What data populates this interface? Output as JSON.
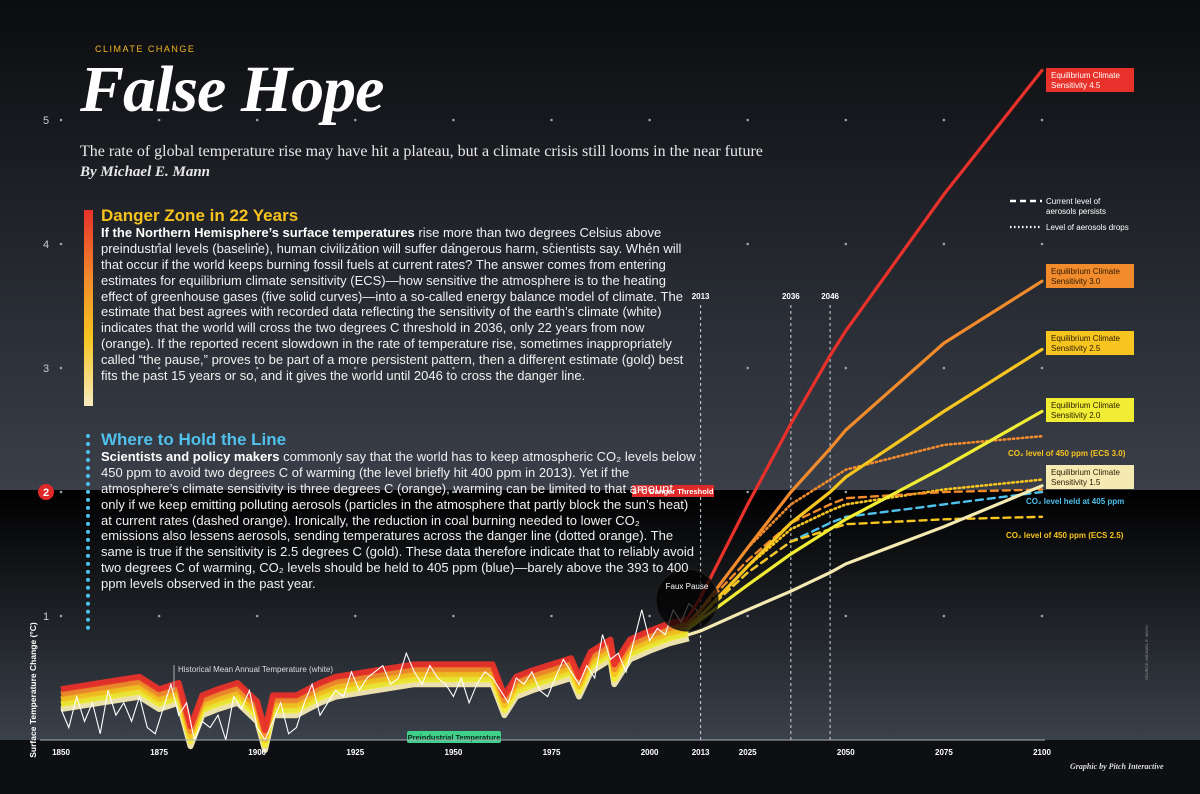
{
  "header": {
    "kicker": "CLIMATE CHANGE",
    "title": "False Hope",
    "subtitle": "The rate of global temperature rise may have hit a plateau, but a climate crisis still looms in the near future",
    "byline": "By Michael E. Mann"
  },
  "danger_panel": {
    "heading": "Danger Zone in 22 Years",
    "lead": "If the Northern Hemisphere’s surface temperatures",
    "body": " rise more than two degrees Celsius above preindustrial levels (baseline), human civilization will suffer dangerous harm, scientists say. When will that occur if the world keeps burning fossil fuels at current rates? The answer comes from entering estimates for equilibrium climate sensitivity (ECS)—how sensitive the atmosphere is to the heating effect of greenhouse gases (five solid curves)—into a so-called energy balance model of climate. The estimate that best agrees with recorded data reflecting the sensitivity of the earth’s climate (white) indicates that the world will cross the two degrees C threshold in 2036, only 22 years from now (orange). If the reported recent slowdown in the rate of temperature rise, sometimes inappropriately called “the pause,” proves to be part of a more persistent pattern, then a different estimate (gold) best fits the past 15 years or so, and it gives the world until 2046 to cross the danger line."
  },
  "hold_panel": {
    "heading": "Where to Hold the Line",
    "lead": "Scientists and policy makers",
    "body": " commonly say that the world has to keep atmospheric CO₂ levels below 450 ppm to avoid two degrees C of warming (the level briefly hit 400 ppm in 2013). Yet if the atmosphere’s climate sensitivity is three degrees C (orange), warming can be limited to that amount only if we keep emitting polluting aerosols (particles in the atmosphere that partly block the sun’s heat) at current rates (dashed orange). Ironically, the reduction in coal burning needed to lower CO₂ emissions also lessens aerosols, sending temperatures across the danger line (dotted orange). The same is true if the sensitivity is 2.5 degrees C (gold). These data therefore indicate that to reliably avoid two degrees C of warming, CO₂ levels should be held to 405 ppm (blue)—barely above the 393 to 400 ppm levels observed in the past year."
  },
  "credit": "Graphic by Pitch Interactive",
  "source": "SOURCE: MICHAEL E. MANN",
  "chart_data": {
    "type": "line",
    "ylabel": "Surface Temperature Change (°C)",
    "xlim": [
      1850,
      2100
    ],
    "ylim": [
      0,
      5
    ],
    "x_ticks": [
      1850,
      1875,
      1900,
      1925,
      1950,
      1975,
      2000,
      2013,
      2025,
      2050,
      2075,
      2100
    ],
    "y_ticks": [
      1,
      2,
      3,
      4,
      5
    ],
    "highlighted_y_tick": 2,
    "grid": "dots",
    "reference_years": [
      2013,
      2036,
      2046
    ],
    "threshold": {
      "value": 2,
      "label": "2 °C Danger Threshold"
    },
    "baseline_label": "Preindustrial Temperature",
    "historical_label": "Historical Mean Annual Temperature (white)",
    "faux_pause_label": "Faux Pause",
    "legend": {
      "dashed": "Current level of aerosols persists",
      "dotted": "Level of aerosols drops"
    },
    "colors": {
      "ecs45": "#e8312a",
      "ecs30": "#f28b2b",
      "ecs25": "#f7c51f",
      "ecs20": "#f1ec34",
      "ecs15": "#f6eab3",
      "blue": "#4fc1ec",
      "historical": "#ffffff",
      "threshold_label": "#e02a2a",
      "baseline_label": "#3fd08a"
    },
    "projection_x": [
      2010,
      2013,
      2025,
      2036,
      2046,
      2050,
      2075,
      2100
    ],
    "series": [
      {
        "name": "Equilibrium Climate Sensitivity 4.5",
        "key": "ecs45",
        "style": "solid",
        "values": [
          1.0,
          1.15,
          1.9,
          2.55,
          3.1,
          3.3,
          4.4,
          5.4
        ]
      },
      {
        "name": "Equilibrium Climate Sensitivity 3.0",
        "key": "ecs30",
        "style": "solid",
        "values": [
          0.95,
          1.05,
          1.55,
          2.0,
          2.35,
          2.5,
          3.2,
          3.7
        ]
      },
      {
        "name": "Equilibrium Climate Sensitivity 2.5",
        "key": "ecs25",
        "style": "solid",
        "values": [
          0.92,
          1.0,
          1.4,
          1.75,
          2.0,
          2.12,
          2.65,
          3.15
        ]
      },
      {
        "name": "Equilibrium Climate Sensitivity 2.0",
        "key": "ecs20",
        "style": "solid",
        "values": [
          0.9,
          0.97,
          1.25,
          1.5,
          1.7,
          1.78,
          2.2,
          2.65
        ]
      },
      {
        "name": "Equilibrium Climate Sensitivity 1.5",
        "key": "ecs15",
        "style": "solid",
        "values": [
          0.85,
          0.88,
          1.05,
          1.2,
          1.35,
          1.42,
          1.72,
          2.05
        ]
      },
      {
        "name": "CO2 level of 450 ppm (ECS 3.0)",
        "key": "ecs30",
        "style": "dotted",
        "values": [
          0.95,
          1.05,
          1.55,
          1.9,
          2.1,
          2.18,
          2.38,
          2.45
        ]
      },
      {
        "name": "",
        "key": "ecs30",
        "style": "dashed",
        "values": [
          0.95,
          1.05,
          1.45,
          1.75,
          1.9,
          1.95,
          2.0,
          2.02
        ]
      },
      {
        "name": "CO2 level of 450 ppm (ECS 2.5)",
        "key": "ecs25",
        "style": "dashed",
        "values": [
          0.92,
          1.0,
          1.35,
          1.6,
          1.7,
          1.74,
          1.78,
          1.8
        ]
      },
      {
        "name": "",
        "key": "ecs25",
        "style": "dotted",
        "values": [
          0.92,
          1.0,
          1.4,
          1.7,
          1.85,
          1.9,
          2.02,
          2.1
        ]
      },
      {
        "name": "CO2 level held at 405 ppm",
        "key": "blue",
        "style": "dashed",
        "values": [
          0.92,
          1.0,
          1.35,
          1.6,
          1.75,
          1.8,
          1.9,
          2.0
        ]
      }
    ],
    "historical": {
      "x": [
        1850,
        1852,
        1854,
        1856,
        1858,
        1860,
        1862,
        1864,
        1866,
        1868,
        1870,
        1872,
        1874,
        1876,
        1878,
        1880,
        1882,
        1884,
        1886,
        1888,
        1890,
        1892,
        1894,
        1896,
        1898,
        1900,
        1902,
        1904,
        1906,
        1908,
        1910,
        1912,
        1914,
        1916,
        1918,
        1920,
        1922,
        1924,
        1926,
        1928,
        1930,
        1932,
        1934,
        1936,
        1938,
        1940,
        1942,
        1944,
        1946,
        1948,
        1950,
        1952,
        1954,
        1956,
        1958,
        1960,
        1962,
        1964,
        1966,
        1968,
        1970,
        1972,
        1974,
        1976,
        1978,
        1980,
        1982,
        1984,
        1986,
        1988,
        1990,
        1992,
        1994,
        1996,
        1998,
        2000,
        2002,
        2004,
        2006,
        2008,
        2010,
        2012,
        2013
      ],
      "values": [
        0.25,
        0.1,
        0.35,
        0.15,
        0.3,
        0.05,
        0.4,
        0.2,
        0.3,
        0.15,
        0.35,
        0.1,
        0.05,
        0.25,
        0.45,
        0.2,
        0.3,
        0.0,
        0.15,
        0.1,
        0.2,
        0.0,
        0.35,
        0.25,
        0.4,
        0.1,
        0.0,
        0.15,
        0.3,
        0.05,
        0.1,
        0.3,
        0.45,
        0.2,
        0.3,
        0.4,
        0.35,
        0.55,
        0.4,
        0.5,
        0.55,
        0.6,
        0.45,
        0.5,
        0.7,
        0.55,
        0.45,
        0.6,
        0.5,
        0.45,
        0.35,
        0.5,
        0.3,
        0.45,
        0.55,
        0.5,
        0.4,
        0.3,
        0.5,
        0.45,
        0.55,
        0.4,
        0.35,
        0.5,
        0.65,
        0.55,
        0.45,
        0.6,
        0.5,
        0.85,
        0.65,
        0.7,
        0.55,
        0.8,
        1.05,
        0.8,
        0.9,
        0.85,
        1.05,
        0.95,
        1.1,
        1.05,
        0.95
      ]
    },
    "model_history": {
      "x": [
        1850,
        1860,
        1870,
        1875,
        1880,
        1883,
        1886,
        1890,
        1895,
        1900,
        1902,
        1904,
        1910,
        1913,
        1916,
        1920,
        1930,
        1940,
        1950,
        1960,
        1963,
        1966,
        1970,
        1980,
        1982,
        1985,
        1990,
        1991,
        1993,
        1995,
        2000,
        2005,
        2010
      ],
      "values": [
        0.35,
        0.4,
        0.45,
        0.35,
        0.4,
        0.05,
        0.3,
        0.35,
        0.4,
        0.25,
        0.02,
        0.3,
        0.3,
        0.35,
        0.4,
        0.45,
        0.5,
        0.55,
        0.55,
        0.55,
        0.3,
        0.45,
        0.5,
        0.6,
        0.45,
        0.65,
        0.75,
        0.55,
        0.65,
        0.75,
        0.82,
        0.88,
        0.92
      ],
      "offsets": {
        "ecs45": 0.06,
        "ecs30": 0.02,
        "ecs25": -0.02,
        "ecs20": -0.06,
        "ecs15": -0.1
      }
    },
    "labels": {
      "ecs45": "Equilibrium Climate Sensitivity 4.5",
      "ecs30": "Equilibrium Climate Sensitivity 3.0",
      "ecs25": "Equilibrium Climate Sensitivity 2.5",
      "ecs20": "Equilibrium Climate Sensitivity 2.0",
      "ecs15": "Equilibrium Climate Sensitivity 1.5",
      "co2_450_ecs30": "CO₂ level of 450 ppm (ECS 3.0)",
      "co2_405": "CO₂ level held at 405 ppm",
      "co2_450_ecs25": "CO₂ level of 450 ppm (ECS 2.5)"
    }
  }
}
